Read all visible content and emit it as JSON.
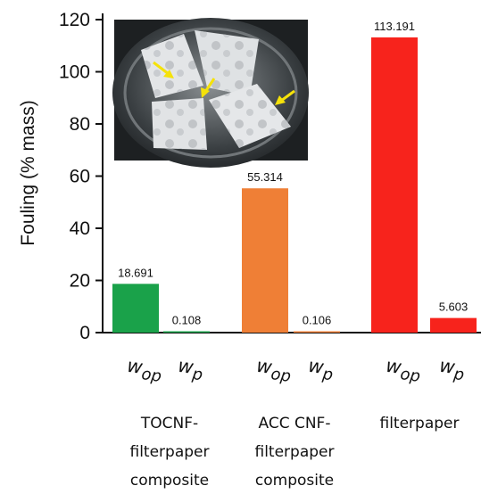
{
  "chart_data": {
    "type": "bar",
    "title": "",
    "xlabel": "",
    "ylabel": "Fouling (% mass)",
    "ylim": [
      0,
      120
    ],
    "yticks": [
      0,
      20,
      40,
      60,
      80,
      100,
      120
    ],
    "grid": false,
    "legend": "none",
    "categories": [
      "wop",
      "wp",
      "wop",
      "wp",
      "wop",
      "wp"
    ],
    "values": [
      18.691,
      0.108,
      55.314,
      0.106,
      113.191,
      5.603
    ],
    "value_labels": [
      "18.691",
      "0.108",
      "55.314",
      "0.106",
      "113.191",
      "5.603"
    ],
    "bar_colors": [
      "#1aa24a",
      "#1aa24a",
      "#ef7f36",
      "#ef7f36",
      "#f7231c",
      "#f7231c"
    ],
    "condition_labels": [
      {
        "main": "w",
        "sub": "op"
      },
      {
        "main": "w",
        "sub": "p"
      },
      {
        "main": "w",
        "sub": "op"
      },
      {
        "main": "w",
        "sub": "p"
      },
      {
        "main": "w",
        "sub": "op"
      },
      {
        "main": "w",
        "sub": "p"
      }
    ],
    "groups": [
      {
        "lines": [
          "TOCNF-",
          "filterpaper",
          "composite"
        ]
      },
      {
        "lines": [
          "ACC CNF-",
          "filterpaper",
          "composite"
        ]
      },
      {
        "lines": [
          "filterpaper"
        ]
      }
    ],
    "inset": {
      "kind": "photo",
      "description_icon": "petri-dish-photo",
      "arrow_color": "#f5e20a"
    }
  }
}
